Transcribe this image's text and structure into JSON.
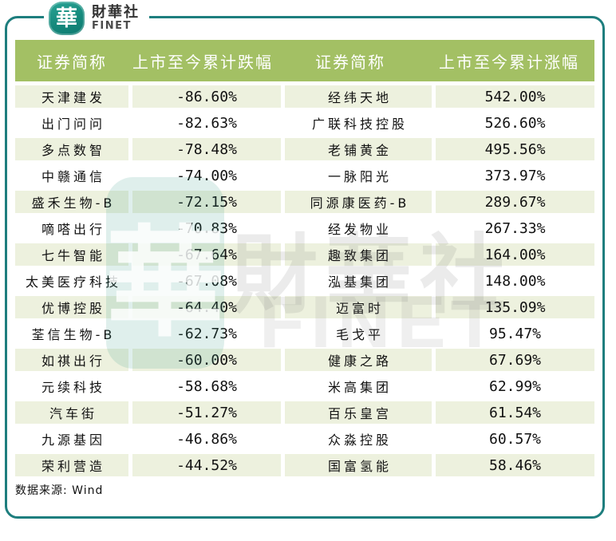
{
  "logo": {
    "badge_char": "華",
    "brand_cn": "財華社",
    "brand_en": "FINET"
  },
  "watermark": {
    "badge_char": "華",
    "text_cn": "財華社",
    "text_en": "FINET"
  },
  "table": {
    "headers": [
      "证券简称",
      "上市至今累计跌幅",
      "证券简称",
      "上市至今累计涨幅"
    ],
    "rows": [
      {
        "loser": "天津建发",
        "loss": "-86.60%",
        "gainer": "经纬天地",
        "gain": "542.00%"
      },
      {
        "loser": "出门问问",
        "loss": "-82.63%",
        "gainer": "广联科技控股",
        "gain": "526.60%"
      },
      {
        "loser": "多点数智",
        "loss": "-78.48%",
        "gainer": "老铺黄金",
        "gain": "495.56%"
      },
      {
        "loser": "中赣通信",
        "loss": "-74.00%",
        "gainer": "一脉阳光",
        "gain": "373.97%"
      },
      {
        "loser": "盛禾生物-B",
        "loss": "-72.15%",
        "gainer": "同源康医药-B",
        "gain": "289.67%"
      },
      {
        "loser": "嘀嗒出行",
        "loss": "-70.83%",
        "gainer": "经发物业",
        "gain": "267.33%"
      },
      {
        "loser": "七牛智能",
        "loss": "-67.64%",
        "gainer": "趣致集团",
        "gain": "164.00%"
      },
      {
        "loser": "太美医疗科技",
        "loss": "-67.08%",
        "gainer": "泓基集团",
        "gain": "148.00%"
      },
      {
        "loser": "优博控股",
        "loss": "-64.40%",
        "gainer": "迈富时",
        "gain": "135.09%"
      },
      {
        "loser": "荃信生物-B",
        "loss": "-62.73%",
        "gainer": "毛戈平",
        "gain": "95.47%"
      },
      {
        "loser": "如祺出行",
        "loss": "-60.00%",
        "gainer": "健康之路",
        "gain": "67.69%"
      },
      {
        "loser": "元续科技",
        "loss": "-58.68%",
        "gainer": "米高集团",
        "gain": "62.99%"
      },
      {
        "loser": "汽车街",
        "loss": "-51.27%",
        "gainer": "百乐皇宫",
        "gain": "61.54%"
      },
      {
        "loser": "九源基因",
        "loss": "-46.86%",
        "gainer": "众淼控股",
        "gain": "60.57%"
      },
      {
        "loser": "荣利营造",
        "loss": "-44.52%",
        "gainer": "国富氢能",
        "gain": "58.46%"
      }
    ]
  },
  "footer": {
    "source": "数据来源: Wind"
  }
}
